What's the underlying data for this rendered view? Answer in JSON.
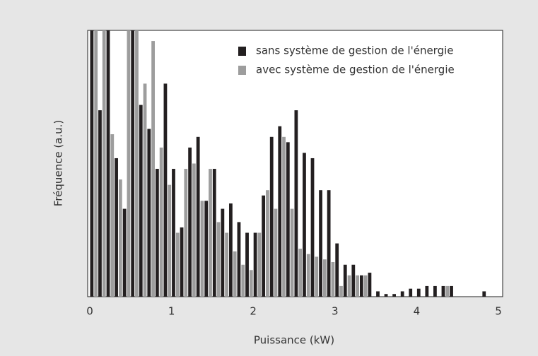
{
  "chart_data": {
    "type": "histogram",
    "xlabel": "Puissance  (kW)",
    "ylabel": "Fréquence  (a.u.)",
    "bins": [
      0,
      0.1,
      0.2,
      0.3,
      0.4,
      0.5,
      0.6,
      0.7,
      0.8,
      0.9,
      1,
      1.1,
      1.2,
      1.3,
      1.4,
      1.5,
      1.6,
      1.7,
      1.8,
      1.9,
      2,
      2.1,
      2.2,
      2.3,
      2.4,
      2.5,
      2.6,
      2.7,
      2.8,
      2.9,
      3,
      3.1,
      3.2,
      3.3,
      3.4,
      3.5,
      3.6,
      3.7,
      3.8,
      3.9,
      4,
      4.1,
      4.2,
      4.3,
      4.4,
      4.5,
      4.6,
      4.7,
      4.8,
      4.9
    ],
    "series": [
      {
        "name": "sans système de gestion de l'énergie",
        "color": "#231f20",
        "values": [
          100,
          70,
          100,
          52,
          33,
          100,
          72,
          63,
          48,
          80,
          48,
          26,
          56,
          60,
          36,
          48,
          33,
          35,
          28,
          24,
          24,
          38,
          60,
          64,
          58,
          70,
          54,
          52,
          40,
          40,
          20,
          12,
          12,
          8,
          9,
          2,
          1,
          1,
          2,
          3,
          3,
          4,
          4,
          4,
          4,
          0,
          0,
          0,
          2
        ]
      },
      {
        "name": "avec système de gestion de l'énergie",
        "color": "#9d9d9d",
        "values": [
          100,
          100,
          61,
          44,
          100,
          100,
          80,
          96,
          56,
          42,
          24,
          48,
          50,
          36,
          48,
          28,
          24,
          17,
          12,
          10,
          24,
          40,
          33,
          60,
          33,
          18,
          16,
          15,
          14,
          13,
          4,
          8,
          8,
          8,
          0,
          0,
          0,
          0,
          0,
          0,
          0,
          0,
          0,
          4,
          0,
          0,
          0,
          0,
          0
        ]
      }
    ],
    "xlim": [
      0,
      5
    ],
    "xticks": [
      0,
      1,
      2,
      3,
      4,
      5
    ],
    "ylim": [
      0,
      100
    ],
    "legend": "upper right"
  }
}
